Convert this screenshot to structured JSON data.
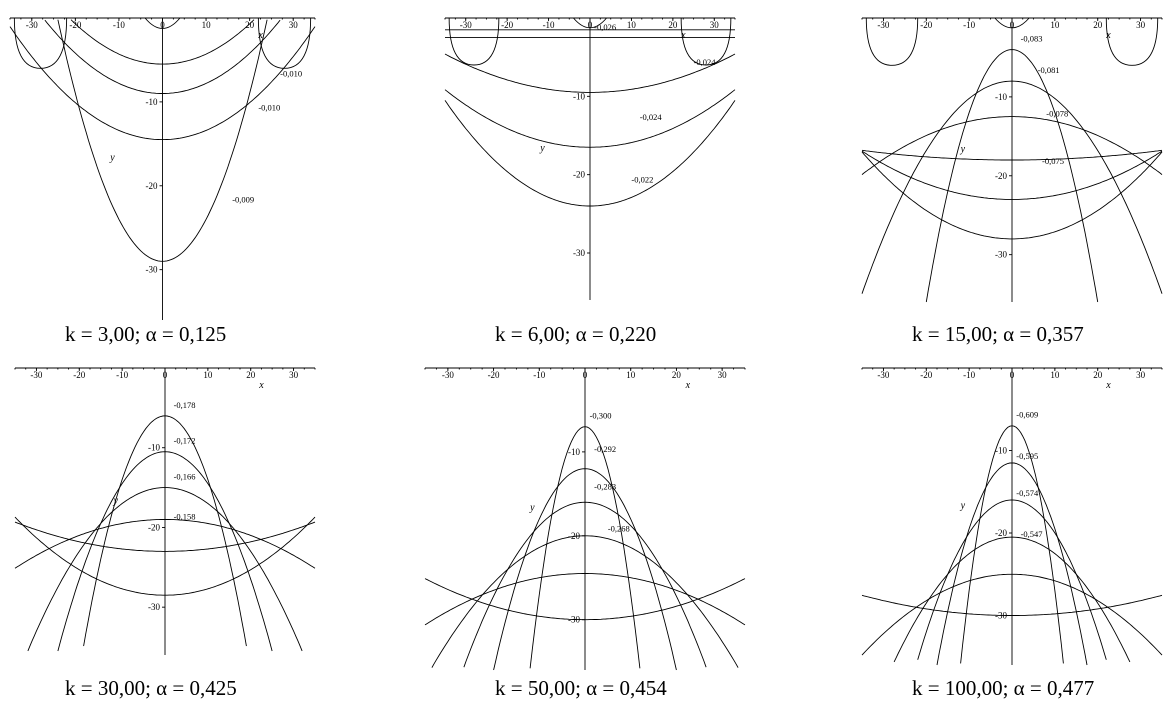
{
  "chart_data": [
    {
      "type": "contour",
      "caption": "k = 3,00; α = 0,125",
      "xlabel": "x",
      "ylabel": "y",
      "xticks": [
        -30,
        -20,
        -10,
        0,
        10,
        20,
        30
      ],
      "yticks": [
        -10,
        -20,
        -30
      ],
      "xlim": [
        -35,
        35
      ],
      "ylim": [
        -36,
        0
      ],
      "top_loops": true,
      "levels": [
        {
          "label": "-0,010",
          "y0": -5.5,
          "b": 0.012,
          "lx": 27,
          "ly": -7
        },
        {
          "label": "-0,010",
          "y0": -9,
          "b": 0.012,
          "lx": 22,
          "ly": -11
        },
        {
          "label": "-0,009",
          "y0": -14.5,
          "b": 0.011,
          "lx": 16,
          "ly": -22
        },
        {
          "label": "",
          "y0": -29,
          "b": 0.05
        }
      ]
    },
    {
      "type": "contour",
      "caption": "k = 6,00; α = 0,220",
      "xlabel": "x",
      "ylabel": "y",
      "xticks": [
        -30,
        -20,
        -10,
        0,
        10,
        20,
        30
      ],
      "yticks": [
        -10,
        -20,
        -30
      ],
      "xlim": [
        -35,
        35
      ],
      "ylim": [
        -36,
        0
      ],
      "top_loops": true,
      "levels": [
        {
          "label": "-0,026",
          "y0": -1.5,
          "b": 0.0,
          "lx": 1,
          "ly": -1.5
        },
        {
          "label": "-0,024",
          "y0": -2.5,
          "b": 0.0,
          "lx": 25,
          "ly": -6
        },
        {
          "label": "-0,024",
          "y0": -9.5,
          "b": 0.004,
          "lx": 12,
          "ly": -13
        },
        {
          "label": "-0,022",
          "y0": -16.5,
          "b": 0.006,
          "lx": 10,
          "ly": -21
        },
        {
          "label": "",
          "y0": -24,
          "b": 0.011
        }
      ]
    },
    {
      "type": "contour",
      "caption": "k = 15,00; α = 0,357",
      "xlabel": "x",
      "ylabel": "y",
      "xticks": [
        -30,
        -20,
        -10,
        0,
        10,
        20,
        30
      ],
      "yticks": [
        -10,
        -20,
        -30
      ],
      "xlim": [
        -35,
        35
      ],
      "ylim": [
        -36,
        0
      ],
      "top_loops": true,
      "levels": [
        {
          "label": "-0,083",
          "y0": -4,
          "b": -0.08,
          "lx": 2,
          "ly": -3
        },
        {
          "label": "-0,081",
          "y0": -8,
          "b": -0.022,
          "lx": 6,
          "ly": -7
        },
        {
          "label": "-0,078",
          "y0": -12.5,
          "b": -0.006,
          "lx": 8,
          "ly": -12.5
        },
        {
          "label": "-0,075",
          "y0": -18,
          "b": 0.001,
          "lx": 7,
          "ly": -18.5
        },
        {
          "label": "",
          "y0": -23,
          "b": 0.005
        },
        {
          "label": "",
          "y0": -28,
          "b": 0.009
        }
      ]
    },
    {
      "type": "contour",
      "caption": "k = 30,00; α = 0,425",
      "xlabel": "x",
      "ylabel": "y",
      "xticks": [
        -30,
        -20,
        -10,
        0,
        10,
        20,
        30
      ],
      "yticks": [
        -10,
        -20,
        -30
      ],
      "xlim": [
        -35,
        35
      ],
      "ylim": [
        -36,
        0
      ],
      "top_loops": false,
      "levels": [
        {
          "label": "-0,178",
          "y0": -6,
          "b": -0.08,
          "lx": 2,
          "ly": -5
        },
        {
          "label": "-0,172",
          "y0": -10.5,
          "b": -0.04,
          "lx": 2,
          "ly": -9.5
        },
        {
          "label": "-0,166",
          "y0": -15,
          "b": -0.02,
          "lx": 2,
          "ly": -14
        },
        {
          "label": "-0,158",
          "y0": -19,
          "b": -0.005,
          "lx": 2,
          "ly": -19
        },
        {
          "label": "",
          "y0": -23,
          "b": 0.003
        },
        {
          "label": "",
          "y0": -28.5,
          "b": 0.008
        }
      ]
    },
    {
      "type": "contour",
      "caption": "k = 50,00; α = 0,454",
      "xlabel": "x",
      "ylabel": "y",
      "xticks": [
        -30,
        -20,
        -10,
        0,
        10,
        20,
        30
      ],
      "yticks": [
        -10,
        -20,
        -30
      ],
      "xlim": [
        -35,
        35
      ],
      "ylim": [
        -36,
        0
      ],
      "top_loops": false,
      "levels": [
        {
          "label": "-0,300",
          "y0": -7,
          "b": -0.2,
          "lx": 1,
          "ly": -6
        },
        {
          "label": "-0,292",
          "y0": -12,
          "b": -0.06,
          "lx": 2,
          "ly": -10
        },
        {
          "label": "-0,283",
          "y0": -16,
          "b": -0.028,
          "lx": 2,
          "ly": -14.5
        },
        {
          "label": "-0,268",
          "y0": -20,
          "b": -0.014,
          "lx": 5,
          "ly": -19.5
        },
        {
          "label": "",
          "y0": -24.5,
          "b": -0.005
        },
        {
          "label": "",
          "y0": -30,
          "b": 0.004
        }
      ]
    },
    {
      "type": "contour",
      "caption": "k = 100,00; α = 0,477",
      "xlabel": "x",
      "ylabel": "y",
      "xticks": [
        -30,
        -20,
        -10,
        0,
        10,
        20,
        30
      ],
      "yticks": [
        -10,
        -20,
        -30
      ],
      "xlim": [
        -35,
        35
      ],
      "ylim": [
        -36,
        0
      ],
      "top_loops": false,
      "levels": [
        {
          "label": "-0,609",
          "y0": -7,
          "b": -0.2,
          "lx": 1,
          "ly": -6
        },
        {
          "label": "-0,595",
          "y0": -11.5,
          "b": -0.08,
          "lx": 1,
          "ly": -11
        },
        {
          "label": "-0,574",
          "y0": -16,
          "b": -0.04,
          "lx": 1,
          "ly": -15.5
        },
        {
          "label": "-0,547",
          "y0": -20.5,
          "b": -0.02,
          "lx": 2,
          "ly": -20.5
        },
        {
          "label": "",
          "y0": -25,
          "b": -0.008
        },
        {
          "label": "",
          "y0": -30,
          "b": 0.002
        }
      ]
    }
  ]
}
